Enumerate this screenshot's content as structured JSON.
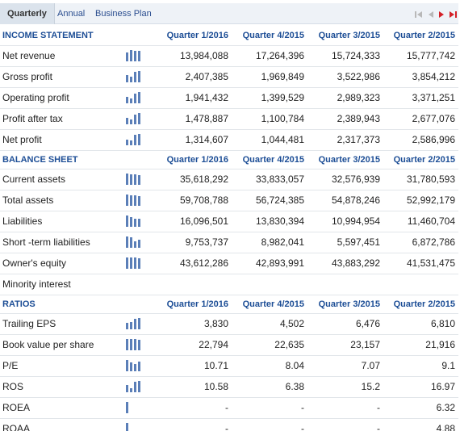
{
  "tabs": [
    {
      "label": "Quarterly",
      "active": true
    },
    {
      "label": "Annual",
      "active": false
    },
    {
      "label": "Business Plan",
      "active": false
    }
  ],
  "colors": {
    "header_text": "#1d4e96",
    "tab_link": "#2a4d8f",
    "nav_red": "#d42027",
    "nav_gray": "#b8b8b8",
    "spark_bar": "#5b7fb8"
  },
  "nav_icons": [
    "first-page-icon",
    "prev-page-icon",
    "next-page-icon",
    "last-page-icon"
  ],
  "quarters": [
    "Quarter 1/2016",
    "Quarter 4/2015",
    "Quarter 3/2015",
    "Quarter 2/2015"
  ],
  "sections": [
    {
      "title": "INCOME STATEMENT",
      "rows": [
        {
          "label": "Net revenue",
          "values": [
            "13,984,088",
            "17,264,396",
            "15,724,333",
            "15,777,742"
          ],
          "spark": [
            0.81,
            1.0,
            0.91,
            0.91
          ]
        },
        {
          "label": "Gross profit",
          "values": [
            "2,407,385",
            "1,969,849",
            "3,522,986",
            "3,854,212"
          ],
          "spark": [
            0.62,
            0.51,
            0.91,
            1.0
          ]
        },
        {
          "label": "Operating profit",
          "values": [
            "1,941,432",
            "1,399,529",
            "2,989,323",
            "3,371,251"
          ],
          "spark": [
            0.58,
            0.42,
            0.89,
            1.0
          ]
        },
        {
          "label": "Profit after tax",
          "values": [
            "1,478,887",
            "1,100,784",
            "2,389,943",
            "2,677,076"
          ],
          "spark": [
            0.55,
            0.41,
            0.89,
            1.0
          ]
        },
        {
          "label": "Net profit",
          "values": [
            "1,314,607",
            "1,044,481",
            "2,317,373",
            "2,586,996"
          ],
          "spark": [
            0.51,
            0.4,
            0.9,
            1.0
          ]
        }
      ]
    },
    {
      "title": "BALANCE SHEET",
      "rows": [
        {
          "label": "Current assets",
          "values": [
            "35,618,292",
            "33,833,057",
            "32,576,939",
            "31,780,593"
          ],
          "spark": [
            1.0,
            0.95,
            0.91,
            0.89
          ]
        },
        {
          "label": "Total assets",
          "values": [
            "59,708,788",
            "56,724,385",
            "54,878,246",
            "52,992,179"
          ],
          "spark": [
            1.0,
            0.95,
            0.92,
            0.89
          ]
        },
        {
          "label": "Liabilities",
          "values": [
            "16,096,501",
            "13,830,394",
            "10,994,954",
            "11,460,704"
          ],
          "spark": [
            1.0,
            0.86,
            0.68,
            0.71
          ]
        },
        {
          "label": "Short -term liabilities",
          "values": [
            "9,753,737",
            "8,982,041",
            "5,597,451",
            "6,872,786"
          ],
          "spark": [
            1.0,
            0.92,
            0.57,
            0.7
          ]
        },
        {
          "label": "Owner's equity",
          "values": [
            "43,612,286",
            "42,893,991",
            "43,883,292",
            "41,531,475"
          ],
          "spark": [
            0.99,
            0.98,
            1.0,
            0.95
          ]
        },
        {
          "label": "Minority interest",
          "values": [],
          "spark": []
        }
      ]
    },
    {
      "title": "RATIOS",
      "rows": [
        {
          "label": "Trailing EPS",
          "values": [
            "3,830",
            "4,502",
            "6,476",
            "6,810"
          ],
          "spark": [
            0.56,
            0.66,
            0.95,
            1.0
          ]
        },
        {
          "label": "Book value per share",
          "values": [
            "22,794",
            "22,635",
            "23,157",
            "21,916"
          ],
          "spark": [
            0.98,
            0.98,
            1.0,
            0.95
          ]
        },
        {
          "label": "P/E",
          "values": [
            "10.71",
            "8.04",
            "7.07",
            "9.1"
          ],
          "spark": [
            1.0,
            0.75,
            0.66,
            0.85
          ]
        },
        {
          "label": "ROS",
          "values": [
            "10.58",
            "6.38",
            "15.2",
            "16.97"
          ],
          "spark": [
            0.62,
            0.38,
            0.9,
            1.0
          ]
        },
        {
          "label": "ROEA",
          "values": [
            "-",
            "-",
            "-",
            "6.32"
          ],
          "spark": [
            0,
            0,
            0,
            1.0
          ]
        },
        {
          "label": "ROAA",
          "values": [
            "-",
            "-",
            "-",
            "4.88"
          ],
          "spark": [
            0,
            0,
            0,
            1.0
          ]
        }
      ]
    }
  ]
}
